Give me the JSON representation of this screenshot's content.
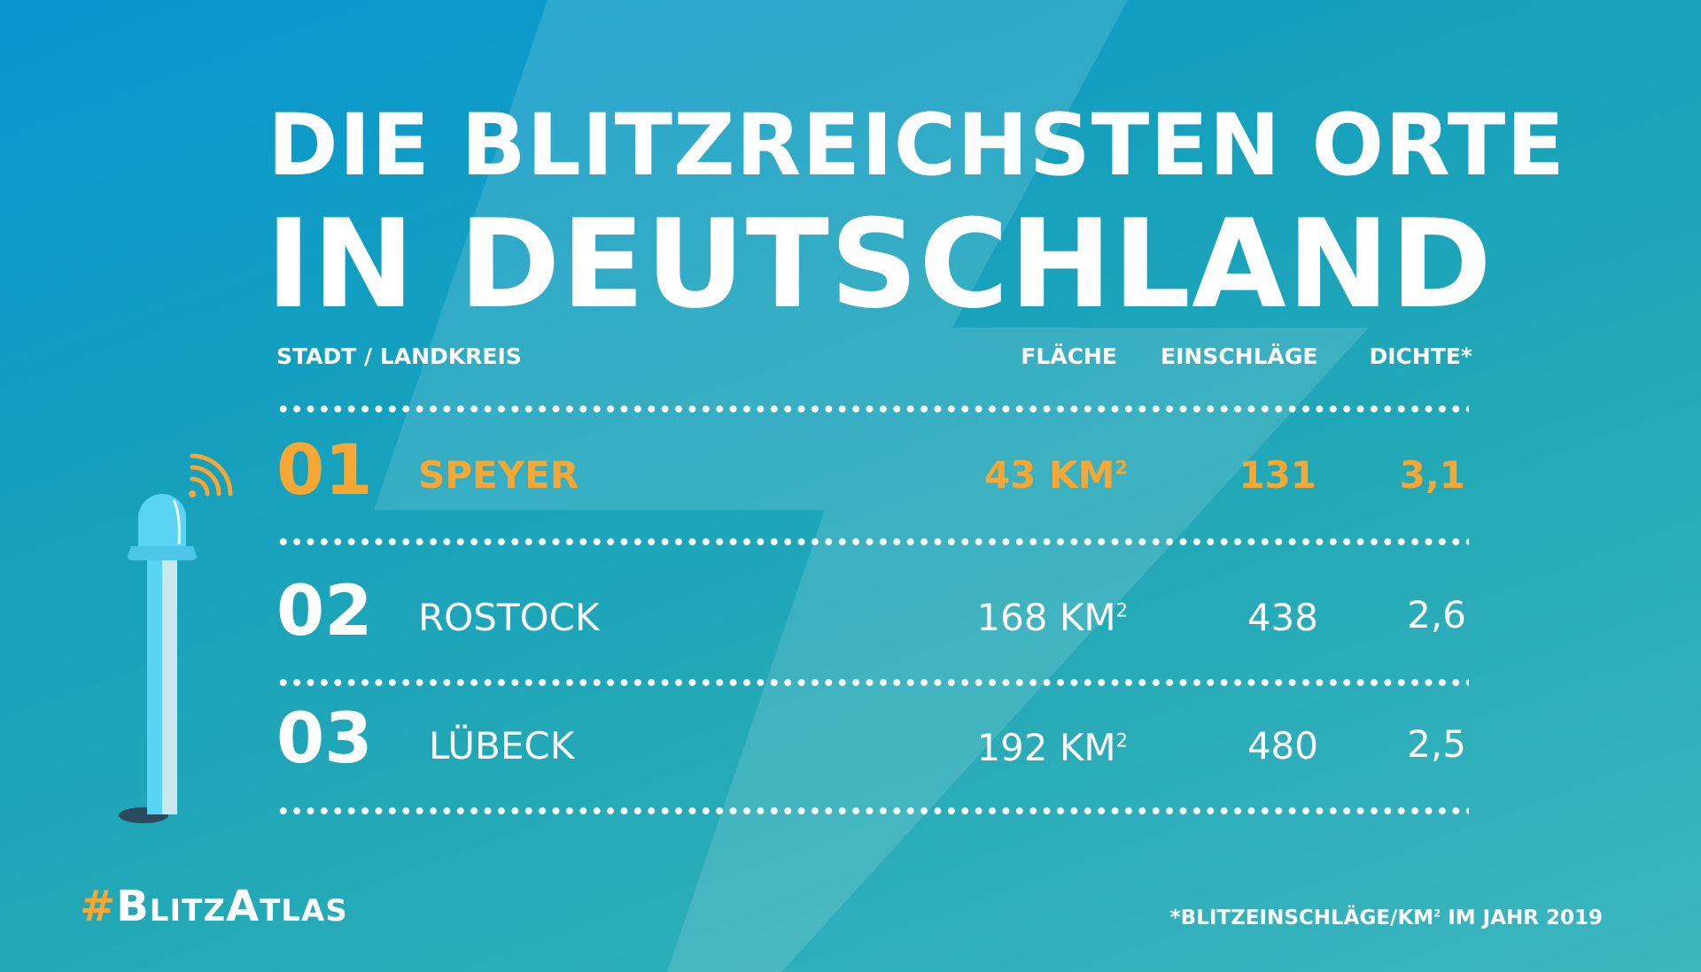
{
  "title": {
    "line1": "DIE BLITZREICHSTEN ORTE",
    "line2": "IN DEUTSCHLAND"
  },
  "headers": {
    "city": "STADT / LANDKREIS",
    "area": "FLÄCHE",
    "strikes": "EINSCHLÄGE",
    "density": "DICHTE*"
  },
  "rows": [
    {
      "rank": "01",
      "name": "SPEYER",
      "area": "43 KM",
      "strikes": "131",
      "density": "3,1"
    },
    {
      "rank": "02",
      "name": "ROSTOCK",
      "area": "168 KM",
      "strikes": "438",
      "density": "2,6"
    },
    {
      "rank": "03",
      "name": "LÜBECK",
      "area": "192 KM",
      "strikes": "480",
      "density": "2,5"
    }
  ],
  "area_unit_sup": "2",
  "hashtag": {
    "hash": "#",
    "text": "BlitzAtlas"
  },
  "footnote": {
    "before": "*BLITZEINSCHLÄGE/KM",
    "sup": "2",
    "after": " IM JAHR 2019"
  },
  "colors": {
    "accent": "#f7a733",
    "bg_top": "#0996d2",
    "bg_bottom": "#3cb6bf",
    "pole": "#5ad4f5"
  }
}
